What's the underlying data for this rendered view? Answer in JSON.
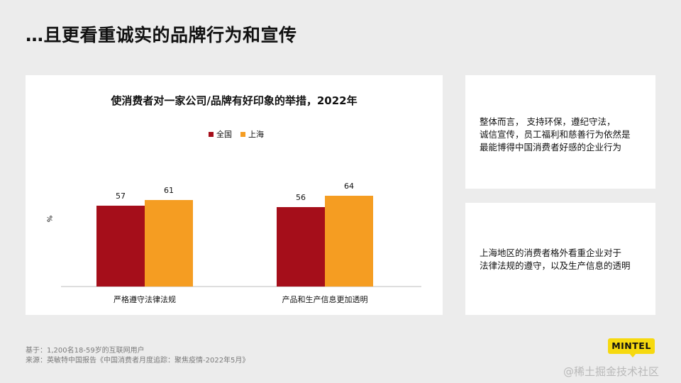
{
  "page": {
    "title": "…且更看重诚实的品牌行为和宣传"
  },
  "chart_data": {
    "type": "bar",
    "title": "使消费者对一家公司/品牌有好印象的举措，2022年",
    "ylabel": "%",
    "xlabel": "",
    "categories": [
      "严格遵守法律法规",
      "产品和生产信息更加透明"
    ],
    "series": [
      {
        "name": "全国",
        "values": [
          57,
          56
        ],
        "color": "#a50e1a"
      },
      {
        "name": "上海",
        "values": [
          61,
          64
        ],
        "color": "#f59d22"
      }
    ],
    "ylim": [
      0,
      80
    ],
    "grid": false,
    "legend_position": "top-center",
    "data_labels": true
  },
  "notes": [
    {
      "lines": [
        "整体而言， 支持环保，遵纪守法，",
        "诚信宣传，员工福利和慈善行为依然是",
        "最能博得中国消费者好感的企业行为"
      ]
    },
    {
      "lines": [
        "上海地区的消费者格外看重企业对于",
        "法律法规的遵守，以及生产信息的透明"
      ]
    }
  ],
  "footer": {
    "base": "基于：1,200名18-59岁的互联网用户",
    "source": "来源：英敏特中国报告《中国消费者月度追踪：聚焦疫情-2022年5月》",
    "logo": "MINTEL",
    "watermark": "@稀土掘金技术社区"
  }
}
